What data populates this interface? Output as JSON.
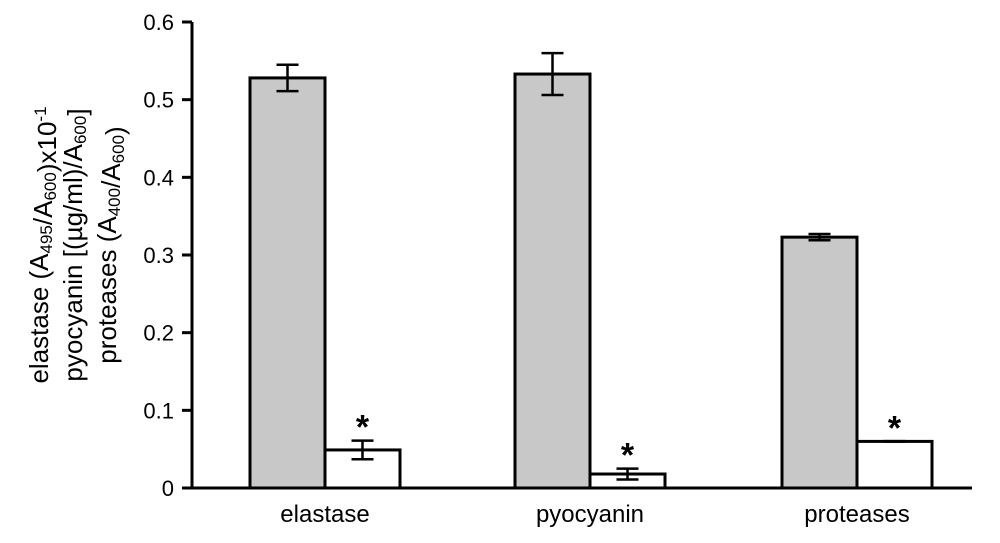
{
  "chart_data": {
    "type": "bar",
    "title": "",
    "xlabel": "",
    "ylabel_lines": [
      [
        {
          "t": "elastase (A",
          "s": "n"
        },
        {
          "t": "495",
          "s": "sub"
        },
        {
          "t": "/A",
          "s": "n"
        },
        {
          "t": "600",
          "s": "sub"
        },
        {
          "t": ")x10",
          "s": "n"
        },
        {
          "t": "-1",
          "s": "sup"
        }
      ],
      [
        {
          "t": "pyocyanin [(µg/ml)/A",
          "s": "n"
        },
        {
          "t": "600",
          "s": "sub"
        },
        {
          "t": "]",
          "s": "n"
        }
      ],
      [
        {
          "t": "proteases (A",
          "s": "n"
        },
        {
          "t": "400",
          "s": "sub"
        },
        {
          "t": "/A",
          "s": "n"
        },
        {
          "t": "600",
          "s": "sub"
        },
        {
          "t": ")",
          "s": "n"
        }
      ]
    ],
    "ylim": [
      0,
      0.6
    ],
    "yticks": [
      {
        "value": 0,
        "label": "0"
      },
      {
        "value": 0.1,
        "label": "0.1"
      },
      {
        "value": 0.2,
        "label": "0.2"
      },
      {
        "value": 0.3,
        "label": "0.3"
      },
      {
        "value": 0.4,
        "label": "0.4"
      },
      {
        "value": 0.5,
        "label": "0.5"
      },
      {
        "value": 0.6,
        "label": "0.6"
      }
    ],
    "categories": [
      "elastase",
      "pyocyanin",
      "proteases"
    ],
    "series": [
      {
        "color": "#c8c8c8",
        "values": [
          0.528,
          0.533,
          0.323
        ],
        "errors": [
          0.017,
          0.027,
          0.004
        ],
        "significance": [
          "",
          "",
          ""
        ]
      },
      {
        "color": "#ffffff",
        "values": [
          0.049,
          0.018,
          0.06
        ],
        "errors": [
          0.012,
          0.007,
          0.0
        ],
        "significance": [
          "*",
          "*",
          "*"
        ]
      }
    ],
    "grid": false,
    "legend": "none"
  }
}
